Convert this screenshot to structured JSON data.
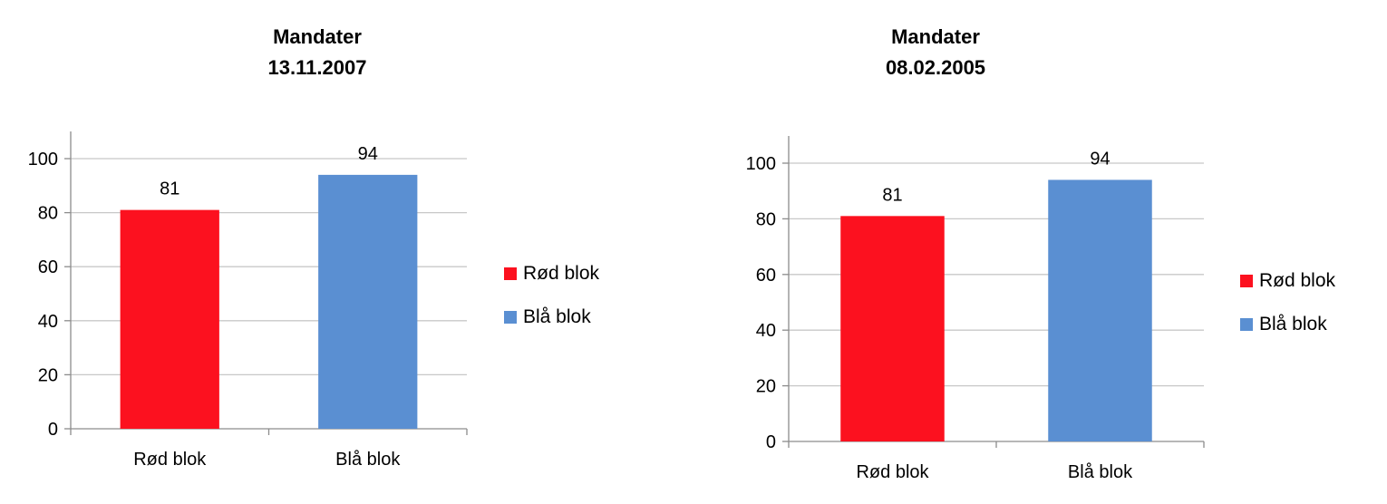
{
  "chart_data": [
    {
      "type": "bar",
      "title": "Mandater",
      "subtitle": "13.11.2007",
      "categories": [
        "Rød blok",
        "Blå blok"
      ],
      "values": [
        81,
        94
      ],
      "colors": [
        "#fc111f",
        "#5a8fd2"
      ],
      "ylim": [
        0,
        100
      ],
      "yticks": [
        0,
        20,
        40,
        60,
        80,
        100
      ],
      "grid": true,
      "legend": {
        "position": "right",
        "entries": [
          "Rød blok",
          "Blå blok"
        ]
      }
    },
    {
      "type": "bar",
      "title": "Mandater",
      "subtitle": "08.02.2005",
      "categories": [
        "Rød blok",
        "Blå blok"
      ],
      "values": [
        81,
        94
      ],
      "colors": [
        "#fc111f",
        "#5a8fd2"
      ],
      "ylim": [
        0,
        100
      ],
      "yticks": [
        0,
        20,
        40,
        60,
        80,
        100
      ],
      "grid": true,
      "legend": {
        "position": "right",
        "entries": [
          "Rød blok",
          "Blå blok"
        ]
      }
    }
  ]
}
